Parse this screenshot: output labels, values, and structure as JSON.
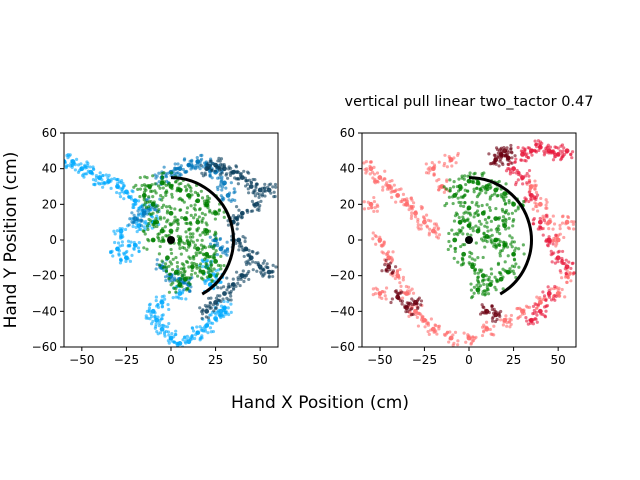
{
  "figure": {
    "suptitle": "vertical pull linear two_tactor 0.47",
    "xlabel": "Hand X Position (cm)",
    "ylabel": "Hand Y Position (cm)"
  },
  "chart_data": [
    {
      "type": "scatter",
      "title": "",
      "xlim": [
        -60,
        60
      ],
      "ylim": [
        -60,
        60
      ],
      "x_ticks": [
        -50,
        -25,
        0,
        25,
        50
      ],
      "y_ticks": [
        -60,
        -40,
        -20,
        0,
        20,
        40,
        60
      ],
      "grid": false,
      "colors": {
        "light": "#00aaff",
        "mid": "#0077bb",
        "dark": "#0a3d5c",
        "accent": "#008000",
        "arc": "#000000"
      },
      "series": [
        {
          "color": "#00aaff",
          "points": [
            [
              -60,
              44
            ],
            [
              -55,
              44
            ],
            [
              -50,
              40
            ],
            [
              -45,
              38
            ],
            [
              -40,
              35
            ],
            [
              -35,
              33
            ],
            [
              -30,
              30
            ],
            [
              -25,
              27
            ],
            [
              -20,
              22
            ],
            [
              -15,
              16
            ],
            [
              -10,
              10
            ],
            [
              -28,
              5
            ],
            [
              -30,
              -5
            ],
            [
              -25,
              -10
            ],
            [
              -20,
              -3
            ],
            [
              -18,
              8
            ],
            [
              -10,
              -40
            ],
            [
              -5,
              -50
            ],
            [
              0,
              -55
            ],
            [
              5,
              -58
            ],
            [
              10,
              -57
            ],
            [
              15,
              -52
            ],
            [
              20,
              -48
            ],
            [
              25,
              -44
            ],
            [
              28,
              -40
            ],
            [
              30,
              -38
            ],
            [
              5,
              -30
            ],
            [
              -5,
              -35
            ],
            [
              -8,
              -45
            ],
            [
              20,
              -15
            ],
            [
              25,
              -20
            ],
            [
              22,
              -25
            ]
          ]
        },
        {
          "color": "#0077bb",
          "points": [
            [
              -5,
              35
            ],
            [
              0,
              38
            ],
            [
              5,
              40
            ],
            [
              10,
              42
            ],
            [
              15,
              44
            ],
            [
              20,
              42
            ],
            [
              25,
              38
            ],
            [
              30,
              32
            ],
            [
              32,
              25
            ],
            [
              -10,
              20
            ],
            [
              -15,
              15
            ],
            [
              -20,
              12
            ],
            [
              -5,
              -15
            ],
            [
              0,
              -20
            ],
            [
              5,
              -22
            ],
            [
              10,
              -25
            ],
            [
              25,
              0
            ],
            [
              28,
              -5
            ]
          ]
        },
        {
          "color": "#0a3d5c",
          "points": [
            [
              20,
              40
            ],
            [
              25,
              42
            ],
            [
              30,
              40
            ],
            [
              35,
              38
            ],
            [
              40,
              35
            ],
            [
              45,
              30
            ],
            [
              50,
              28
            ],
            [
              55,
              28
            ],
            [
              48,
              20
            ],
            [
              40,
              15
            ],
            [
              35,
              10
            ],
            [
              38,
              0
            ],
            [
              42,
              -5
            ],
            [
              45,
              -10
            ],
            [
              50,
              -15
            ],
            [
              55,
              -18
            ],
            [
              40,
              -20
            ],
            [
              35,
              -25
            ],
            [
              30,
              -30
            ],
            [
              25,
              -35
            ],
            [
              20,
              -40
            ]
          ]
        },
        {
          "color": "#008000",
          "points": [
            [
              -15,
              25
            ],
            [
              -12,
              30
            ],
            [
              -10,
              20
            ],
            [
              -8,
              10
            ],
            [
              -5,
              32
            ],
            [
              0,
              30
            ],
            [
              5,
              28
            ],
            [
              10,
              25
            ],
            [
              15,
              22
            ],
            [
              20,
              20
            ],
            [
              25,
              15
            ],
            [
              -5,
              5
            ],
            [
              0,
              5
            ],
            [
              5,
              0
            ],
            [
              10,
              -2
            ],
            [
              15,
              -5
            ],
            [
              20,
              -8
            ],
            [
              25,
              -12
            ],
            [
              -2,
              -10
            ],
            [
              3,
              -18
            ],
            [
              8,
              -22
            ],
            [
              12,
              -15
            ],
            [
              18,
              -18
            ],
            [
              22,
              -20
            ],
            [
              0,
              15
            ],
            [
              8,
              12
            ],
            [
              15,
              10
            ],
            [
              20,
              5
            ],
            [
              -10,
              0
            ],
            [
              5,
              -25
            ]
          ]
        }
      ],
      "arc": {
        "radius": 35,
        "start_deg": 90,
        "end_deg": -60
      },
      "center": [
        0,
        0
      ]
    },
    {
      "type": "scatter",
      "title": "vertical pull linear two_tactor 0.47",
      "xlim": [
        -60,
        60
      ],
      "ylim": [
        -60,
        60
      ],
      "x_ticks": [
        -50,
        -25,
        0,
        25,
        50
      ],
      "y_ticks": [
        -60,
        -40,
        -20,
        0,
        20,
        40,
        60
      ],
      "grid": false,
      "colors": {
        "light": "#ff6b6b",
        "mid": "#e8193c",
        "dark": "#6b0010",
        "accent": "#008000",
        "arc": "#000000"
      },
      "series": [
        {
          "color": "#ff6b6b",
          "points": [
            [
              -55,
              40
            ],
            [
              -50,
              35
            ],
            [
              -45,
              30
            ],
            [
              -40,
              25
            ],
            [
              -35,
              20
            ],
            [
              -30,
              15
            ],
            [
              -25,
              10
            ],
            [
              -20,
              5
            ],
            [
              -50,
              0
            ],
            [
              -45,
              -10
            ],
            [
              -40,
              -20
            ],
            [
              -35,
              -30
            ],
            [
              -30,
              -40
            ],
            [
              -25,
              -45
            ],
            [
              -20,
              -50
            ],
            [
              -10,
              -55
            ],
            [
              0,
              -55
            ],
            [
              10,
              -50
            ],
            [
              20,
              -45
            ],
            [
              30,
              -40
            ],
            [
              40,
              -35
            ],
            [
              50,
              -30
            ],
            [
              55,
              -20
            ],
            [
              -55,
              20
            ],
            [
              -50,
              -30
            ],
            [
              -15,
              30
            ],
            [
              -20,
              40
            ],
            [
              -10,
              45
            ],
            [
              35,
              30
            ],
            [
              40,
              20
            ],
            [
              45,
              10
            ],
            [
              50,
              0
            ],
            [
              55,
              10
            ]
          ]
        },
        {
          "color": "#e8193c",
          "points": [
            [
              30,
              48
            ],
            [
              35,
              50
            ],
            [
              40,
              52
            ],
            [
              45,
              50
            ],
            [
              50,
              48
            ],
            [
              55,
              50
            ],
            [
              25,
              40
            ],
            [
              30,
              35
            ],
            [
              35,
              25
            ],
            [
              40,
              10
            ],
            [
              45,
              0
            ],
            [
              50,
              -10
            ],
            [
              55,
              -15
            ],
            [
              45,
              -30
            ],
            [
              40,
              -40
            ],
            [
              35,
              -45
            ]
          ]
        },
        {
          "color": "#6b0010",
          "points": [
            [
              15,
              45
            ],
            [
              18,
              48
            ],
            [
              20,
              50
            ],
            [
              22,
              46
            ],
            [
              -30,
              -35
            ],
            [
              -35,
              -38
            ],
            [
              -40,
              -32
            ],
            [
              10,
              -40
            ],
            [
              15,
              -42
            ],
            [
              -45,
              -15
            ]
          ]
        },
        {
          "color": "#008000",
          "points": [
            [
              -8,
              25
            ],
            [
              -5,
              30
            ],
            [
              0,
              33
            ],
            [
              5,
              32
            ],
            [
              10,
              30
            ],
            [
              15,
              28
            ],
            [
              20,
              26
            ],
            [
              25,
              20
            ],
            [
              -5,
              10
            ],
            [
              0,
              8
            ],
            [
              5,
              5
            ],
            [
              10,
              2
            ],
            [
              15,
              0
            ],
            [
              20,
              -3
            ],
            [
              25,
              -8
            ],
            [
              -3,
              -8
            ],
            [
              2,
              -15
            ],
            [
              8,
              -20
            ],
            [
              12,
              -25
            ],
            [
              18,
              -22
            ],
            [
              22,
              -18
            ],
            [
              0,
              18
            ],
            [
              8,
              15
            ],
            [
              15,
              12
            ],
            [
              20,
              8
            ],
            [
              -8,
              0
            ],
            [
              5,
              -28
            ]
          ]
        }
      ],
      "arc": {
        "radius": 35,
        "start_deg": 90,
        "end_deg": -60
      },
      "center": [
        0,
        0
      ]
    }
  ]
}
